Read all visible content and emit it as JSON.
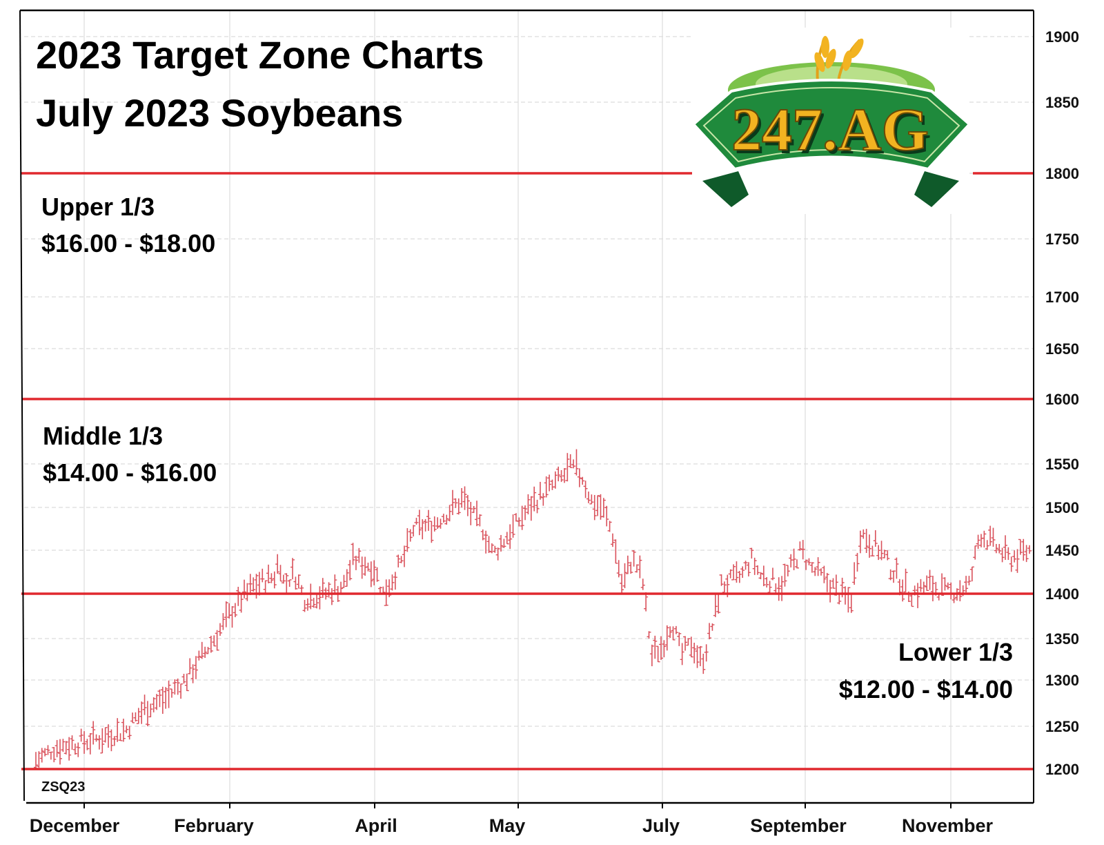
{
  "colors": {
    "zone_line": "#e0282e",
    "price_bar": "#d9505a",
    "grid": "#dcdcdc",
    "axis": "#000000",
    "logo_green_dark": "#0f5a2a",
    "logo_green": "#1f8a3c",
    "logo_gold": "#f2b321"
  },
  "chart_data": {
    "type": "ohlc",
    "title_line1": "2023 Target Zone Charts",
    "title_line2": "July 2023 Soybeans",
    "symbol": "ZSQ23",
    "y_ticks": [
      1200,
      1250,
      1300,
      1350,
      1400,
      1450,
      1500,
      1550,
      1600,
      1650,
      1700,
      1750,
      1800,
      1850,
      1900
    ],
    "ylim": [
      1165,
      1930
    ],
    "y_axis_position": "right",
    "grid": true,
    "x_ticks": [
      "December",
      "February",
      "April",
      "May",
      "July",
      "September",
      "November"
    ],
    "zone_lines": [
      1800,
      1600,
      1400,
      1200
    ],
    "zones": [
      {
        "label": "Upper 1/3",
        "range": "$16.00 - $18.00"
      },
      {
        "label": "Middle 1/3",
        "range": "$14.00 - $16.00"
      },
      {
        "label": "Lower 1/3",
        "range": "$12.00 - $14.00"
      }
    ],
    "price_path": [
      [
        0,
        1210
      ],
      [
        0.02,
        1225
      ],
      [
        0.06,
        1235
      ],
      [
        0.09,
        1245
      ],
      [
        0.11,
        1270
      ],
      [
        0.13,
        1280
      ],
      [
        0.15,
        1300
      ],
      [
        0.18,
        1350
      ],
      [
        0.2,
        1385
      ],
      [
        0.22,
        1410
      ],
      [
        0.24,
        1420
      ],
      [
        0.245,
        1440
      ],
      [
        0.25,
        1410
      ],
      [
        0.26,
        1425
      ],
      [
        0.27,
        1395
      ],
      [
        0.29,
        1400
      ],
      [
        0.31,
        1410
      ],
      [
        0.32,
        1440
      ],
      [
        0.34,
        1430
      ],
      [
        0.35,
        1400
      ],
      [
        0.37,
        1440
      ],
      [
        0.38,
        1475
      ],
      [
        0.4,
        1480
      ],
      [
        0.42,
        1500
      ],
      [
        0.43,
        1510
      ],
      [
        0.44,
        1490
      ],
      [
        0.45,
        1475
      ],
      [
        0.46,
        1445
      ],
      [
        0.48,
        1475
      ],
      [
        0.5,
        1505
      ],
      [
        0.52,
        1525
      ],
      [
        0.53,
        1535
      ],
      [
        0.54,
        1545
      ],
      [
        0.55,
        1535
      ],
      [
        0.56,
        1505
      ],
      [
        0.57,
        1500
      ],
      [
        0.58,
        1470
      ],
      [
        0.59,
        1410
      ],
      [
        0.6,
        1440
      ],
      [
        0.61,
        1420
      ],
      [
        0.62,
        1330
      ],
      [
        0.63,
        1340
      ],
      [
        0.64,
        1370
      ],
      [
        0.65,
        1330
      ],
      [
        0.66,
        1345
      ],
      [
        0.67,
        1320
      ],
      [
        0.68,
        1360
      ],
      [
        0.69,
        1410
      ],
      [
        0.71,
        1420
      ],
      [
        0.72,
        1440
      ],
      [
        0.73,
        1420
      ],
      [
        0.75,
        1410
      ],
      [
        0.77,
        1450
      ],
      [
        0.78,
        1430
      ],
      [
        0.8,
        1410
      ],
      [
        0.82,
        1390
      ],
      [
        0.83,
        1470
      ],
      [
        0.84,
        1460
      ],
      [
        0.85,
        1450
      ],
      [
        0.86,
        1430
      ],
      [
        0.88,
        1400
      ],
      [
        0.9,
        1410
      ],
      [
        0.92,
        1400
      ],
      [
        0.94,
        1410
      ],
      [
        0.95,
        1470
      ],
      [
        0.96,
        1460
      ],
      [
        0.98,
        1440
      ],
      [
        1.0,
        1450
      ]
    ]
  },
  "logo": {
    "text": "247.AG"
  }
}
